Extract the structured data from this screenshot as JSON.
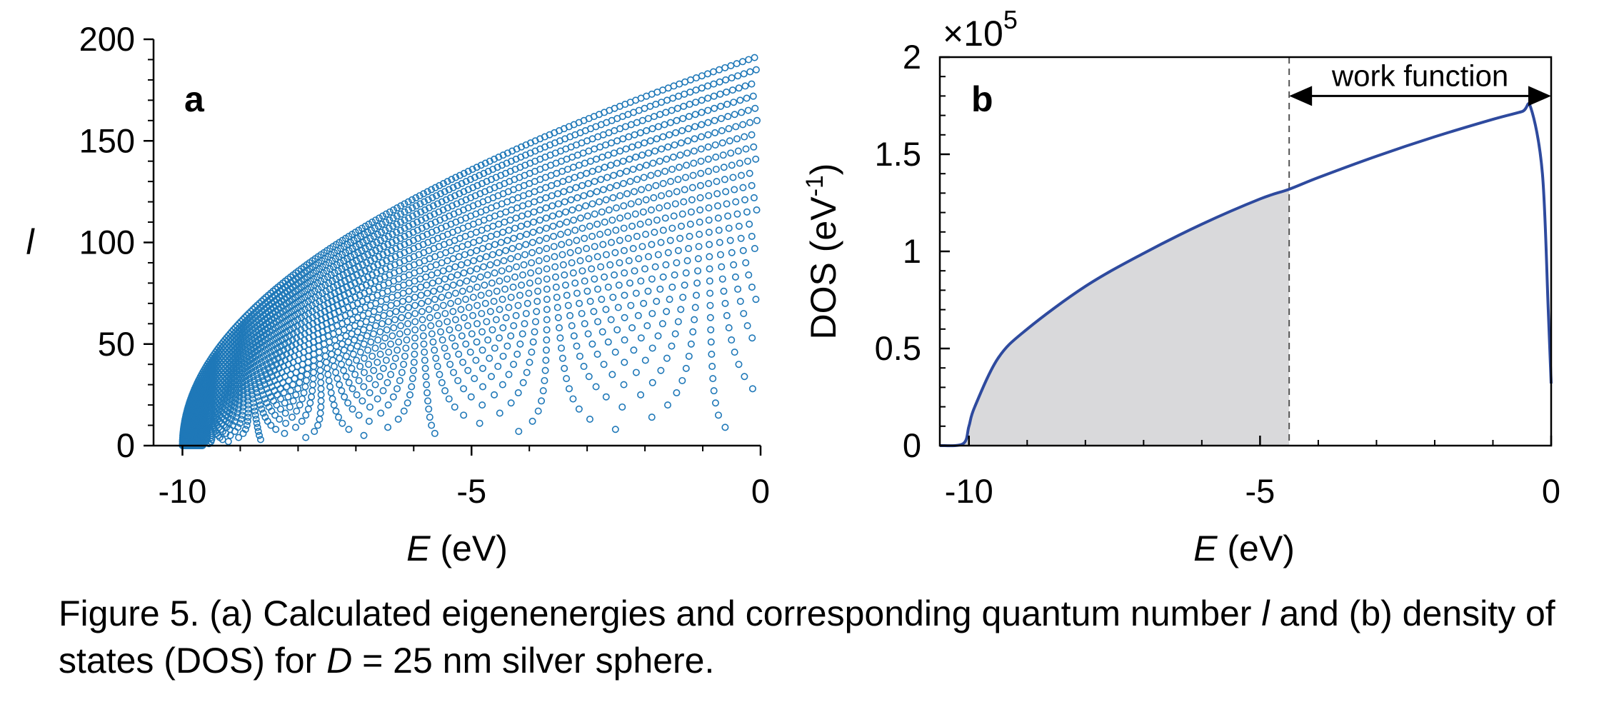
{
  "chart_data": [
    {
      "panel": "a",
      "type": "scatter",
      "xlabel_italic": "E",
      "xlabel_rest": " (eV)",
      "ylabel": "l",
      "xlim": [
        -10.5,
        0
      ],
      "ylim": [
        0,
        200
      ],
      "xticks": [
        -10,
        -5,
        0
      ],
      "xtick_labels": [
        "-10",
        "-5",
        "0"
      ],
      "yticks": [
        0,
        50,
        100,
        150,
        200
      ],
      "ytick_labels": [
        "0",
        "50",
        "100",
        "150",
        "200"
      ],
      "marker": "open-circle",
      "color": "#1f78b8",
      "description_model": "Eigenenergies form nested branches; branch n starts near E = -10 at l = 0 and rises roughly as l ≈ L_n·sqrt((E+10)/10), with L_0 ≈ 192 and L_n decreasing by ≈ 6 per branch.",
      "branch_top_l_at_E0": [
        192,
        184,
        177,
        170,
        163
      ]
    },
    {
      "panel": "b",
      "type": "area",
      "xlabel_italic": "E",
      "xlabel_rest": " (eV)",
      "ylabel": "DOS (eV",
      "ylabel_sup": "-1",
      "ylabel_end": ")",
      "scale_prefix": "×10",
      "scale_exp": "5",
      "xlim": [
        -10.5,
        0
      ],
      "ylim": [
        0,
        2
      ],
      "xticks": [
        -10,
        -5,
        0
      ],
      "xtick_labels": [
        "-10",
        "-5",
        "0"
      ],
      "yticks": [
        0,
        0.5,
        1,
        1.5,
        2
      ],
      "ytick_labels": [
        "0",
        "0.5",
        "1",
        "1.5",
        "2"
      ],
      "line_color": "#2e4a9e",
      "fill_color": "#d9d9db",
      "fill_end_x": -4.5,
      "x": [
        -10.5,
        -10.1,
        -10.0,
        -9.9,
        -9.5,
        -9.0,
        -8.0,
        -7.0,
        -6.0,
        -5.0,
        -4.5,
        -4.0,
        -3.0,
        -2.0,
        -1.0,
        -0.5,
        -0.35,
        -0.15,
        -0.05,
        0.0
      ],
      "y": [
        0,
        0.01,
        0.1,
        0.2,
        0.45,
        0.6,
        0.82,
        0.99,
        1.14,
        1.27,
        1.32,
        1.38,
        1.49,
        1.59,
        1.68,
        1.72,
        1.74,
        1.4,
        0.7,
        0.32
      ],
      "annotation": "work function",
      "annotation_x_range": [
        -4.5,
        0
      ],
      "annotation_y": 1.8
    }
  ],
  "panel_labels": {
    "a": "a",
    "b": "b"
  },
  "caption": {
    "part1": "Figure 5. (a) Calculated eigenenergies and corresponding quantum number ",
    "l": "l",
    "part2": " and (b) density of states (DOS) for ",
    "D": "D",
    "part3": " = 25 nm silver sphere."
  }
}
